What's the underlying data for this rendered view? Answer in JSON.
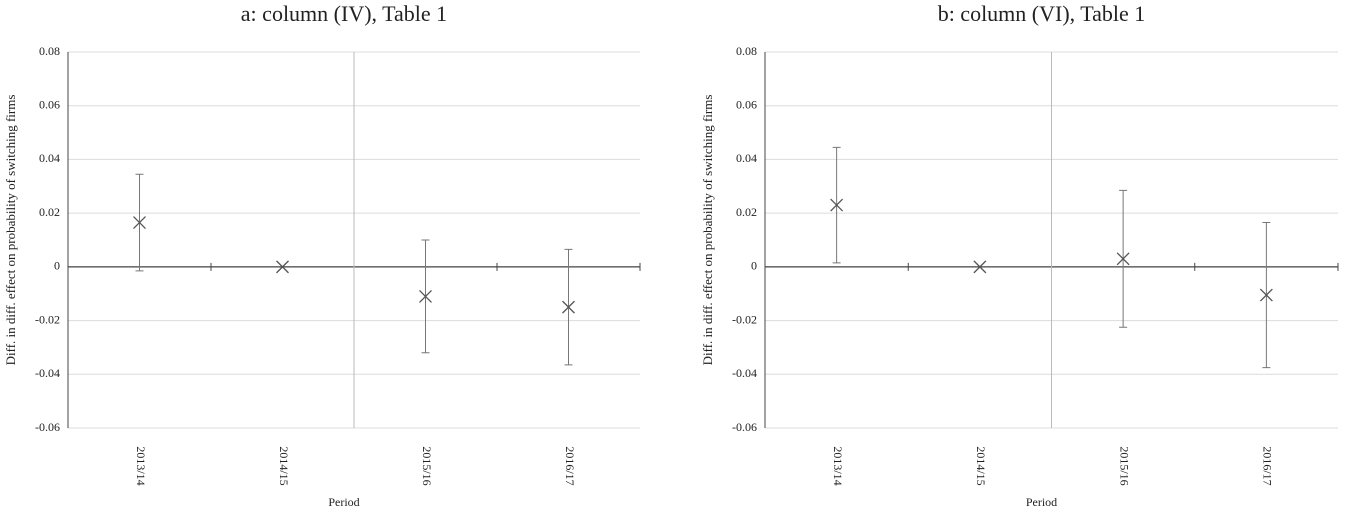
{
  "chart_data": [
    {
      "type": "errorbar",
      "title": "a: column (IV), Table 1",
      "x_label": "Period",
      "y_label": "Diff. in diff. effect on probability of switching firms",
      "categories": [
        "2013/14",
        "2014/15",
        "2015/16",
        "2016/17"
      ],
      "values": [
        0.0165,
        0,
        -0.011,
        -0.015
      ],
      "errors": [
        0.018,
        null,
        0.021,
        0.0215
      ],
      "ylim": [
        -0.06,
        0.08
      ],
      "yticks": [
        -0.06,
        -0.04,
        -0.02,
        0,
        0.02,
        0.04,
        0.06,
        0.08
      ],
      "grid": true,
      "color": "#555555"
    },
    {
      "type": "errorbar",
      "title": "b: column (VI), Table 1",
      "x_label": "Period",
      "y_label": "Diff. in diff. effect on probability of switching firms",
      "categories": [
        "2013/14",
        "2014/15",
        "2015/16",
        "2016/17"
      ],
      "values": [
        0.023,
        0,
        0.003,
        -0.0105
      ],
      "errors": [
        0.0215,
        null,
        0.0255,
        0.027
      ],
      "ylim": [
        -0.06,
        0.08
      ],
      "yticks": [
        -0.06,
        -0.04,
        -0.02,
        0,
        0.02,
        0.04,
        0.06,
        0.08
      ],
      "grid": true,
      "color": "#555555"
    }
  ]
}
